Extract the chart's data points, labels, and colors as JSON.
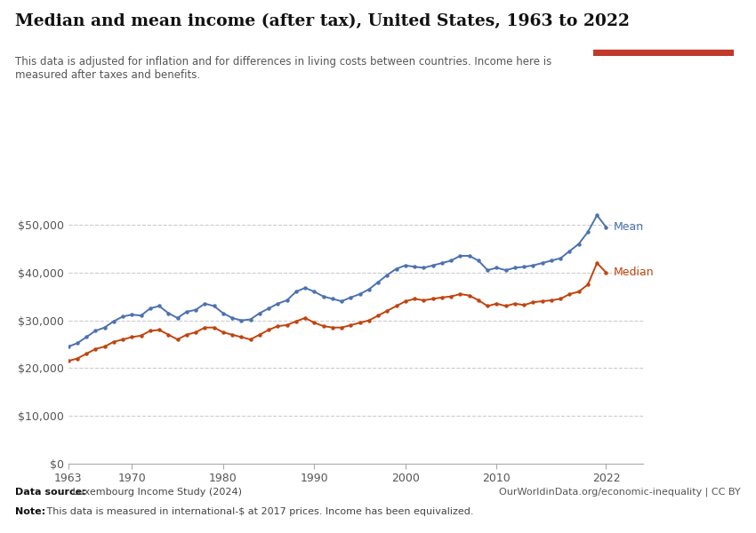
{
  "title": "Median and mean income (after tax), United States, 1963 to 2022",
  "subtitle": "This data is adjusted for inflation and for differences in living costs between countries. Income here is\nmeasured after taxes and benefits.",
  "datasource_bold": "Data source:",
  "datasource_rest": " Luxembourg Income Study (2024)",
  "url": "OurWorldinData.org/economic-inequality | CC BY",
  "note_bold": "Note:",
  "note_rest": " This data is measured in international-$ at 2017 prices. Income has been equivalized.",
  "mean_color": "#4C72B0",
  "median_color": "#C1440E",
  "background_color": "#ffffff",
  "logo_bg": "#1d3557",
  "logo_red": "#c0392b",
  "years": [
    1963,
    1964,
    1965,
    1966,
    1967,
    1968,
    1969,
    1970,
    1971,
    1972,
    1973,
    1974,
    1975,
    1976,
    1977,
    1978,
    1979,
    1980,
    1981,
    1982,
    1983,
    1984,
    1985,
    1986,
    1987,
    1988,
    1989,
    1990,
    1991,
    1992,
    1993,
    1994,
    1995,
    1996,
    1997,
    1998,
    1999,
    2000,
    2001,
    2002,
    2003,
    2004,
    2005,
    2006,
    2007,
    2008,
    2009,
    2010,
    2011,
    2012,
    2013,
    2014,
    2015,
    2016,
    2017,
    2018,
    2019,
    2020,
    2021,
    2022
  ],
  "mean_values": [
    24500,
    25200,
    26500,
    27800,
    28500,
    29800,
    30800,
    31200,
    31000,
    32500,
    33000,
    31500,
    30500,
    31800,
    32200,
    33500,
    33000,
    31500,
    30500,
    30000,
    30200,
    31500,
    32500,
    33500,
    34200,
    36000,
    36800,
    36000,
    35000,
    34500,
    34000,
    34800,
    35500,
    36500,
    38000,
    39500,
    40800,
    41500,
    41200,
    41000,
    41500,
    42000,
    42500,
    43500,
    43500,
    42500,
    40500,
    41000,
    40500,
    41000,
    41200,
    41500,
    42000,
    42500,
    43000,
    44500,
    46000,
    48500,
    52000,
    49500
  ],
  "median_values": [
    21500,
    22000,
    23000,
    24000,
    24500,
    25500,
    26000,
    26500,
    26800,
    27800,
    28000,
    27000,
    26000,
    27000,
    27500,
    28500,
    28500,
    27500,
    27000,
    26500,
    26000,
    27000,
    28000,
    28800,
    29000,
    29800,
    30500,
    29500,
    28800,
    28500,
    28500,
    29000,
    29500,
    30000,
    31000,
    32000,
    33000,
    34000,
    34500,
    34200,
    34500,
    34800,
    35000,
    35500,
    35200,
    34200,
    33000,
    33500,
    33000,
    33500,
    33200,
    33800,
    34000,
    34200,
    34500,
    35500,
    36000,
    37500,
    42000,
    40000
  ],
  "xlim": [
    1963,
    2026
  ],
  "ylim": [
    0,
    58000
  ],
  "xticks": [
    1963,
    1970,
    1980,
    1990,
    2000,
    2010,
    2022
  ],
  "yticks": [
    0,
    10000,
    20000,
    30000,
    40000,
    50000
  ]
}
